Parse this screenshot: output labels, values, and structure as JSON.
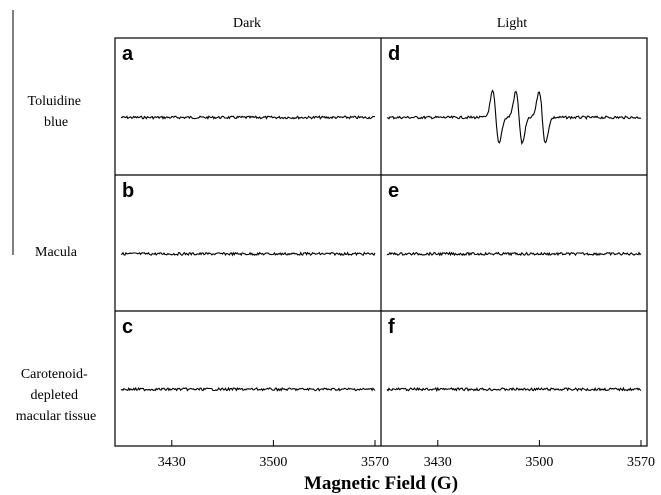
{
  "chart_data": {
    "type": "line",
    "columns": [
      "Dark",
      "Light"
    ],
    "rows": [
      "Toluidine blue",
      "Macula",
      "Carotenoid-depleted macular tissue"
    ],
    "row_label_lines": [
      [
        "Toluidine",
        "blue"
      ],
      [
        "Macula"
      ],
      [
        "Carotenoid-",
        "depleted",
        "macular tissue"
      ]
    ],
    "xlabel": "Magnetic Field (G)",
    "xlim": [
      3395,
      3570
    ],
    "xticks": [
      3430,
      3500,
      3570
    ],
    "panels": [
      {
        "label": "a",
        "column": "Dark",
        "row": "Toluidine blue",
        "signal": "flat"
      },
      {
        "label": "d",
        "column": "Light",
        "row": "Toluidine blue",
        "signal": "triplet",
        "peaks_G": [
          3470,
          3486,
          3502
        ]
      },
      {
        "label": "b",
        "column": "Dark",
        "row": "Macula",
        "signal": "flat"
      },
      {
        "label": "e",
        "column": "Light",
        "row": "Macula",
        "signal": "flat"
      },
      {
        "label": "c",
        "column": "Dark",
        "row": "Carotenoid-depleted macular tissue",
        "signal": "flat"
      },
      {
        "label": "f",
        "column": "Light",
        "row": "Carotenoid-depleted macular tissue",
        "signal": "flat"
      }
    ]
  }
}
